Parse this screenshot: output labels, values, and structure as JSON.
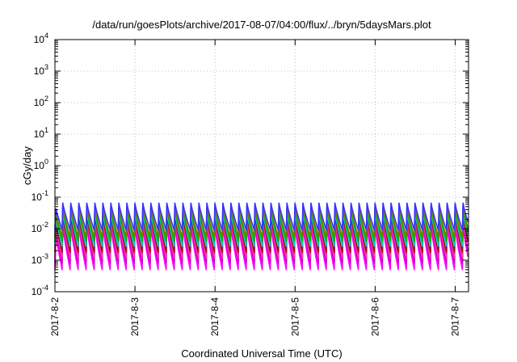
{
  "chart_data": {
    "type": "line",
    "title": "/data/run/goesPlots/archive/2017-08-07/04:00/flux/../bryn/5daysMars.plot",
    "xlabel": "Coordinated Universal Time (UTC)",
    "ylabel": "cGy/day",
    "yscale": "log",
    "ylim": [
      0.0001,
      10000
    ],
    "y_ticks": [
      {
        "base": "10",
        "exp": "-4",
        "value": 0.0001
      },
      {
        "base": "10",
        "exp": "-3",
        "value": 0.001
      },
      {
        "base": "10",
        "exp": "-2",
        "value": 0.01
      },
      {
        "base": "10",
        "exp": "-1",
        "value": 0.1
      },
      {
        "base": "10",
        "exp": "0",
        "value": 1
      },
      {
        "base": "10",
        "exp": "1",
        "value": 10
      },
      {
        "base": "10",
        "exp": "2",
        "value": 100
      },
      {
        "base": "10",
        "exp": "3",
        "value": 1000
      },
      {
        "base": "10",
        "exp": "4",
        "value": 10000
      }
    ],
    "xlim": [
      "2017-08-02",
      "2017-08-07T04:00"
    ],
    "x_ticks": [
      "2017-8-2",
      "2017-8-3",
      "2017-8-4",
      "2017-8-5",
      "2017-8-6",
      "2017-8-7"
    ],
    "x_tick_dates": [
      "2017-08-02",
      "2017-08-03",
      "2017-08-04",
      "2017-08-05",
      "2017-08-06",
      "2017-08-07"
    ],
    "grid": true,
    "legend": "none",
    "cycles_per_day": 10,
    "series": [
      {
        "color": "#ff00ff",
        "peak": 0.012,
        "trough": 0.0005
      },
      {
        "color": "#cc00cc",
        "peak": 0.016,
        "trough": 0.0008
      },
      {
        "color": "#ff3399",
        "peak": 0.02,
        "trough": 0.0012
      },
      {
        "color": "#8b1a1a",
        "peak": 0.026,
        "trough": 0.0018
      },
      {
        "color": "#00cccc",
        "peak": 0.034,
        "trough": 0.0028
      },
      {
        "color": "#00bb00",
        "peak": 0.042,
        "trough": 0.004
      },
      {
        "color": "#7a7a00",
        "peak": 0.05,
        "trough": 0.0055
      },
      {
        "color": "#3333ff",
        "peak": 0.065,
        "trough": 0.009
      }
    ]
  }
}
